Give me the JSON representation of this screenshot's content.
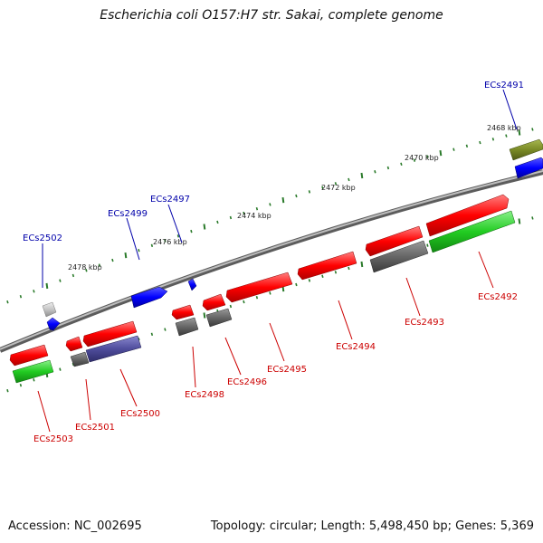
{
  "title": "Escherichia coli O157:H7 str. Sakai, complete genome",
  "footer": {
    "accession": "Accession: NC_002695",
    "info": "Topology: circular; Length: 5,498,450 bp; Genes: 5,369"
  },
  "colors": {
    "backbone": "#8a8a8a",
    "tick": "#2a7a2a",
    "label_forward": "#0000aa",
    "label_reverse": "#cc0000"
  },
  "kbp_labels": [
    "2468 kbp",
    "2470 kbp",
    "2472 kbp",
    "2474 kbp",
    "2476 kbp",
    "2478 kbp"
  ],
  "genes": [
    "ECs2491",
    "ECs2492",
    "ECs2493",
    "ECs2494",
    "ECs2495",
    "ECs2496",
    "ECs2497",
    "ECs2498",
    "ECs2499",
    "ECs2500",
    "ECs2501",
    "ECs2502",
    "ECs2503"
  ]
}
